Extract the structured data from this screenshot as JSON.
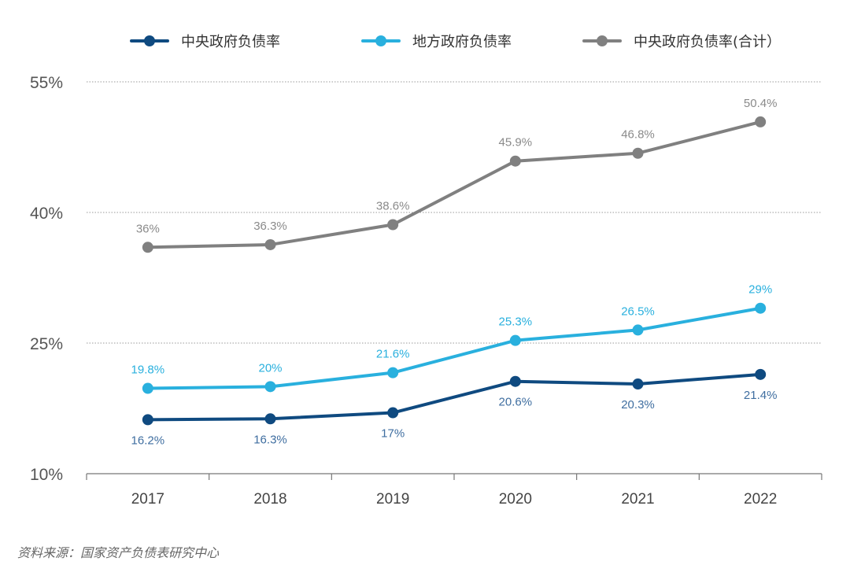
{
  "chart_data": {
    "type": "line",
    "categories": [
      "2017",
      "2018",
      "2019",
      "2020",
      "2021",
      "2022"
    ],
    "ylim": [
      10,
      55
    ],
    "yticks": [
      "10%",
      "25%",
      "40%",
      "55%"
    ],
    "ytick_values": [
      10,
      25,
      40,
      55
    ],
    "grid": "dotted horizontal",
    "legend_position": "top",
    "series": [
      {
        "name": "中央政府负债率",
        "color": "#0f4a80",
        "values": [
          16.2,
          16.3,
          17,
          20.6,
          20.3,
          21.4
        ],
        "labels": [
          "16.2%",
          "16.3%",
          "17%",
          "20.6%",
          "20.3%",
          "21.4%"
        ],
        "label_position": "below"
      },
      {
        "name": "地方政府负债率",
        "color": "#29b0de",
        "values": [
          19.8,
          20,
          21.6,
          25.3,
          26.5,
          29
        ],
        "labels": [
          "19.8%",
          "20%",
          "21.6%",
          "25.3%",
          "26.5%",
          "29%"
        ],
        "label_position": "above"
      },
      {
        "name": "中央政府负债率（合计）",
        "legend_label": "中央政府负债率(合计）",
        "color": "#808080",
        "label_color": "#8a8a8a",
        "values": [
          36,
          36.3,
          38.6,
          45.9,
          46.8,
          50.4
        ],
        "labels": [
          "36%",
          "36.3%",
          "38.6%",
          "45.9%",
          "46.8%",
          "50.4%"
        ],
        "label_position": "above"
      }
    ]
  },
  "source": "资料来源：国家资产负债表研究中心"
}
